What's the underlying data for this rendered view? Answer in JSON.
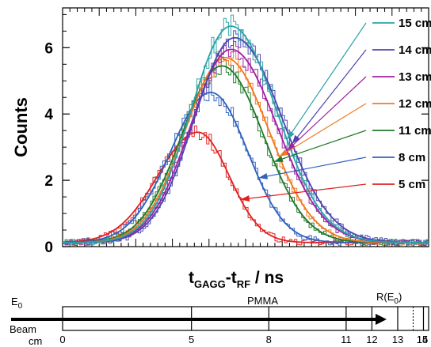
{
  "chart_data": {
    "type": "line",
    "xlabel": {
      "main": "t",
      "sub1": "GAGG",
      "mid": "-t",
      "sub2": "RF",
      "tail": " / ns"
    },
    "ylabel": "Counts",
    "ylim": [
      0,
      7.2
    ],
    "yticks": [
      0,
      2,
      4,
      6
    ],
    "x_range_ns": [
      0,
      1
    ],
    "grid": false,
    "legend_position": "right",
    "colors": {
      "15 cm": "#2aa2a8",
      "14 cm": "#4b44b0",
      "13 cm": "#a020a0",
      "12 cm": "#f07820",
      "11 cm": "#1e7a2a",
      "8 cm": "#3060c0",
      "5 cm": "#e02020"
    },
    "series": [
      {
        "name": "15 cm",
        "color": "#2aa2a8",
        "peak": 6.65,
        "peak_x": 0.46,
        "baseline": 0.12
      },
      {
        "name": "14 cm",
        "color": "#4b44b0",
        "peak": 6.3,
        "peak_x": 0.47,
        "baseline": 0.12
      },
      {
        "name": "13 cm",
        "color": "#a020a0",
        "peak": 5.95,
        "peak_x": 0.46,
        "baseline": 0.12
      },
      {
        "name": "12 cm",
        "color": "#f07820",
        "peak": 5.7,
        "peak_x": 0.445,
        "baseline": 0.12
      },
      {
        "name": "11 cm",
        "color": "#1e7a2a",
        "peak": 5.45,
        "peak_x": 0.435,
        "baseline": 0.12
      },
      {
        "name": "8 cm",
        "color": "#3060c0",
        "peak": 4.65,
        "peak_x": 0.405,
        "baseline": 0.12
      },
      {
        "name": "5 cm",
        "color": "#e02020",
        "peak": 3.45,
        "peak_x": 0.37,
        "baseline": 0.12
      }
    ]
  },
  "ruler": {
    "e0_main": "E",
    "e0_sub": "0",
    "beam_label": "Beam",
    "material_label": "PMMA",
    "range_main": "R(E",
    "range_sub": "0",
    "range_close": ")",
    "unit_label": "cm",
    "ticks": [
      {
        "value": 0,
        "label": "0"
      },
      {
        "value": 5,
        "label": "5"
      },
      {
        "value": 8,
        "label": "8"
      },
      {
        "value": 11,
        "label": "11"
      },
      {
        "value": 12,
        "label": "12"
      },
      {
        "value": 13,
        "label": "13"
      },
      {
        "value": 14,
        "label": "14"
      },
      {
        "value": 15,
        "label": "15"
      }
    ],
    "range_value": 13.6
  }
}
